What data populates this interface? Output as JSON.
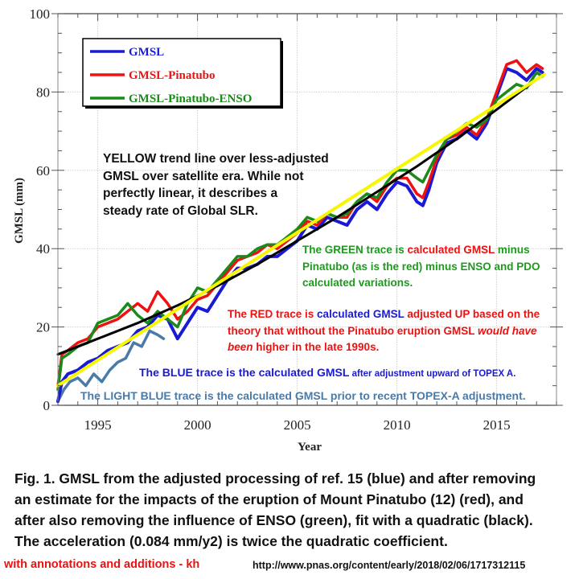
{
  "chart_data": {
    "type": "line",
    "title": "",
    "xlabel": "Year",
    "ylabel": "GMSL (mm)",
    "xlim": [
      1993,
      2018
    ],
    "ylim": [
      0,
      100
    ],
    "xticks": [
      1995,
      2000,
      2005,
      2010,
      2015
    ],
    "yticks": [
      0,
      20,
      40,
      60,
      80,
      100
    ],
    "grid": true,
    "legend_position": "top-left",
    "series": [
      {
        "name": "LIGHT BLUE (GMSL prior to TOPEX-A adjustment)",
        "in_legend": false,
        "color": "#4a7aa8",
        "x": [
          1993.0,
          1993.3,
          1993.6,
          1994.0,
          1994.4,
          1994.8,
          1995.2,
          1995.6,
          1996.0,
          1996.4,
          1996.8,
          1997.2,
          1997.6,
          1998.0,
          1998.3
        ],
        "y": [
          1,
          4,
          6,
          7,
          5,
          8,
          6,
          9,
          11,
          12,
          16,
          15,
          19,
          18,
          17
        ]
      },
      {
        "name": "GMSL",
        "in_legend": true,
        "color": "#1a1ad6",
        "x": [
          1993.0,
          1993.2,
          1993.5,
          1994.0,
          1994.5,
          1995.0,
          1995.5,
          1996.0,
          1996.5,
          1997.0,
          1997.5,
          1998.0,
          1998.5,
          1999.0,
          1999.5,
          2000.0,
          2000.5,
          2001.0,
          2001.5,
          2002.0,
          2002.5,
          2003.0,
          2003.5,
          2004.0,
          2004.5,
          2005.0,
          2005.5,
          2006.0,
          2006.5,
          2007.0,
          2007.5,
          2008.0,
          2008.5,
          2009.0,
          2009.5,
          2010.0,
          2010.5,
          2011.0,
          2011.3,
          2011.6,
          2012.0,
          2012.5,
          2013.0,
          2013.5,
          2014.0,
          2014.5,
          2015.0,
          2015.5,
          2016.0,
          2016.5,
          2017.0,
          2017.3
        ],
        "y": [
          1,
          6,
          8,
          9,
          11,
          12,
          14,
          15,
          16,
          19,
          20,
          23,
          22,
          17,
          21,
          25,
          24,
          28,
          32,
          35,
          35,
          36,
          38,
          38,
          40,
          42,
          46,
          45,
          48,
          47,
          46,
          50,
          52,
          50,
          54,
          57,
          56,
          52,
          51,
          55,
          62,
          67,
          68,
          70,
          68,
          72,
          79,
          86,
          85,
          83,
          86,
          85
        ]
      },
      {
        "name": "GMSL-Pinatubo",
        "in_legend": true,
        "color": "#ee1111",
        "x": [
          1993.0,
          1993.2,
          1993.5,
          1994.0,
          1994.5,
          1995.0,
          1995.5,
          1996.0,
          1996.5,
          1997.0,
          1997.5,
          1998.0,
          1998.5,
          1999.0,
          1999.5,
          2000.0,
          2000.5,
          2001.0,
          2001.5,
          2002.0,
          2002.5,
          2003.0,
          2003.5,
          2004.0,
          2004.5,
          2005.0,
          2005.5,
          2006.0,
          2006.5,
          2007.0,
          2007.5,
          2008.0,
          2008.5,
          2009.0,
          2009.5,
          2010.0,
          2010.5,
          2011.0,
          2011.3,
          2011.6,
          2012.0,
          2012.5,
          2013.0,
          2013.5,
          2014.0,
          2014.5,
          2015.0,
          2015.5,
          2016.0,
          2016.5,
          2017.0,
          2017.3
        ],
        "y": [
          5,
          13,
          14,
          16,
          17,
          20,
          21,
          22,
          24,
          26,
          24,
          29,
          26,
          22,
          24,
          27,
          28,
          31,
          34,
          37,
          38,
          39,
          41,
          40,
          42,
          44,
          47,
          46,
          49,
          48,
          48,
          52,
          54,
          52,
          56,
          58,
          58,
          54,
          53,
          57,
          63,
          68,
          69,
          71,
          69,
          73,
          80,
          87,
          88,
          85,
          87,
          86
        ]
      },
      {
        "name": "GMSL-Pinatubo-ENSO",
        "in_legend": true,
        "color": "#1a8a1a",
        "x": [
          1993.0,
          1993.2,
          1993.5,
          1994.0,
          1994.5,
          1995.0,
          1995.5,
          1996.0,
          1996.5,
          1997.0,
          1997.5,
          1998.0,
          1998.5,
          1999.0,
          1999.5,
          2000.0,
          2000.5,
          2001.0,
          2001.5,
          2002.0,
          2002.5,
          2003.0,
          2003.5,
          2004.0,
          2004.5,
          2005.0,
          2005.5,
          2006.0,
          2006.5,
          2007.0,
          2007.5,
          2008.0,
          2008.5,
          2009.0,
          2009.5,
          2010.0,
          2010.5,
          2011.0,
          2011.3,
          2011.6,
          2012.0,
          2012.5,
          2013.0,
          2013.5,
          2014.0,
          2014.5,
          2015.0,
          2015.5,
          2016.0,
          2016.5,
          2017.0,
          2017.3
        ],
        "y": [
          4,
          12,
          13,
          15,
          16,
          21,
          22,
          23,
          26,
          23,
          21,
          24,
          22,
          20,
          26,
          30,
          29,
          32,
          35,
          38,
          38,
          40,
          41,
          41,
          43,
          45,
          48,
          47,
          49,
          48,
          49,
          52,
          54,
          53,
          57,
          60,
          60,
          58,
          57,
          60,
          64,
          68,
          70,
          72,
          71,
          73,
          78,
          80,
          82,
          81,
          85,
          84
        ]
      },
      {
        "name": "Quadratic fit (black)",
        "in_legend": false,
        "color": "#000000",
        "x": [
          1993.0,
          1995.0,
          1997.0,
          1999.0,
          2001.0,
          2003.0,
          2005.0,
          2007.0,
          2009.0,
          2011.0,
          2013.0,
          2015.0,
          2017.2
        ],
        "y": [
          13,
          17,
          21,
          25.5,
          30.5,
          36,
          42,
          48,
          54.5,
          61,
          68,
          75.5,
          84
        ]
      },
      {
        "name": "Yellow trend line",
        "in_legend": false,
        "color": "#f7f700",
        "x": [
          1993.0,
          2017.4
        ],
        "y": [
          5,
          84.5
        ]
      }
    ]
  },
  "legend": {
    "items": [
      {
        "label": "GMSL",
        "color": "#1a1ad6"
      },
      {
        "label": "GMSL-Pinatubo",
        "color": "#ee1111"
      },
      {
        "label": "GMSL-Pinatubo-ENSO",
        "color": "#1a8a1a"
      }
    ]
  },
  "annotations": {
    "yellow_note": {
      "lines": [
        "YELLOW trend line over less-adjusted",
        "GMSL over satellite era.  While not",
        "perfectly linear, it describes a",
        "steady rate of Global SLR."
      ]
    },
    "green_note": {
      "line1_a": "The GREEN  trace is ",
      "line1_b": "calculated GMSL",
      "line1_c": " minus",
      "line2": "Pinatubo (as is the red) minus ENSO and PDO",
      "line3": "calculated  variations."
    },
    "red_note": {
      "line1_a": "The RED trace is ",
      "line1_b": "calculated GMSL",
      "line1_c": " adjusted UP based on the",
      "line2_a": "theory that without the Pinatubo eruption GMSL ",
      "line2_b": "would have",
      "line3_a": "been",
      "line3_b": " higher in the late 1990s."
    },
    "blue_note": {
      "main": "The BLUE trace is the calculated GMSL",
      "small": " after adjustment upward of TOPEX A."
    },
    "lightblue_note": "The LIGHT BLUE trace is the calculated GMSL prior to recent TOPEX-A adjustment."
  },
  "caption": {
    "lines": [
      "Fig. 1. GMSL from the adjusted processing of ref. 15 (blue) and after removing",
      "an estimate for the impacts of the eruption of Mount Pinatubo (12) (red), and",
      "after also removing the influence of ENSO (green), fit with a quadratic (black).",
      "The acceleration (0.084 mm/y2) is twice the quadratic coefficient."
    ]
  },
  "credit": "with annotations and additions - kh",
  "source_url": "http://www.pnas.org/content/early/2018/02/06/1717312115"
}
